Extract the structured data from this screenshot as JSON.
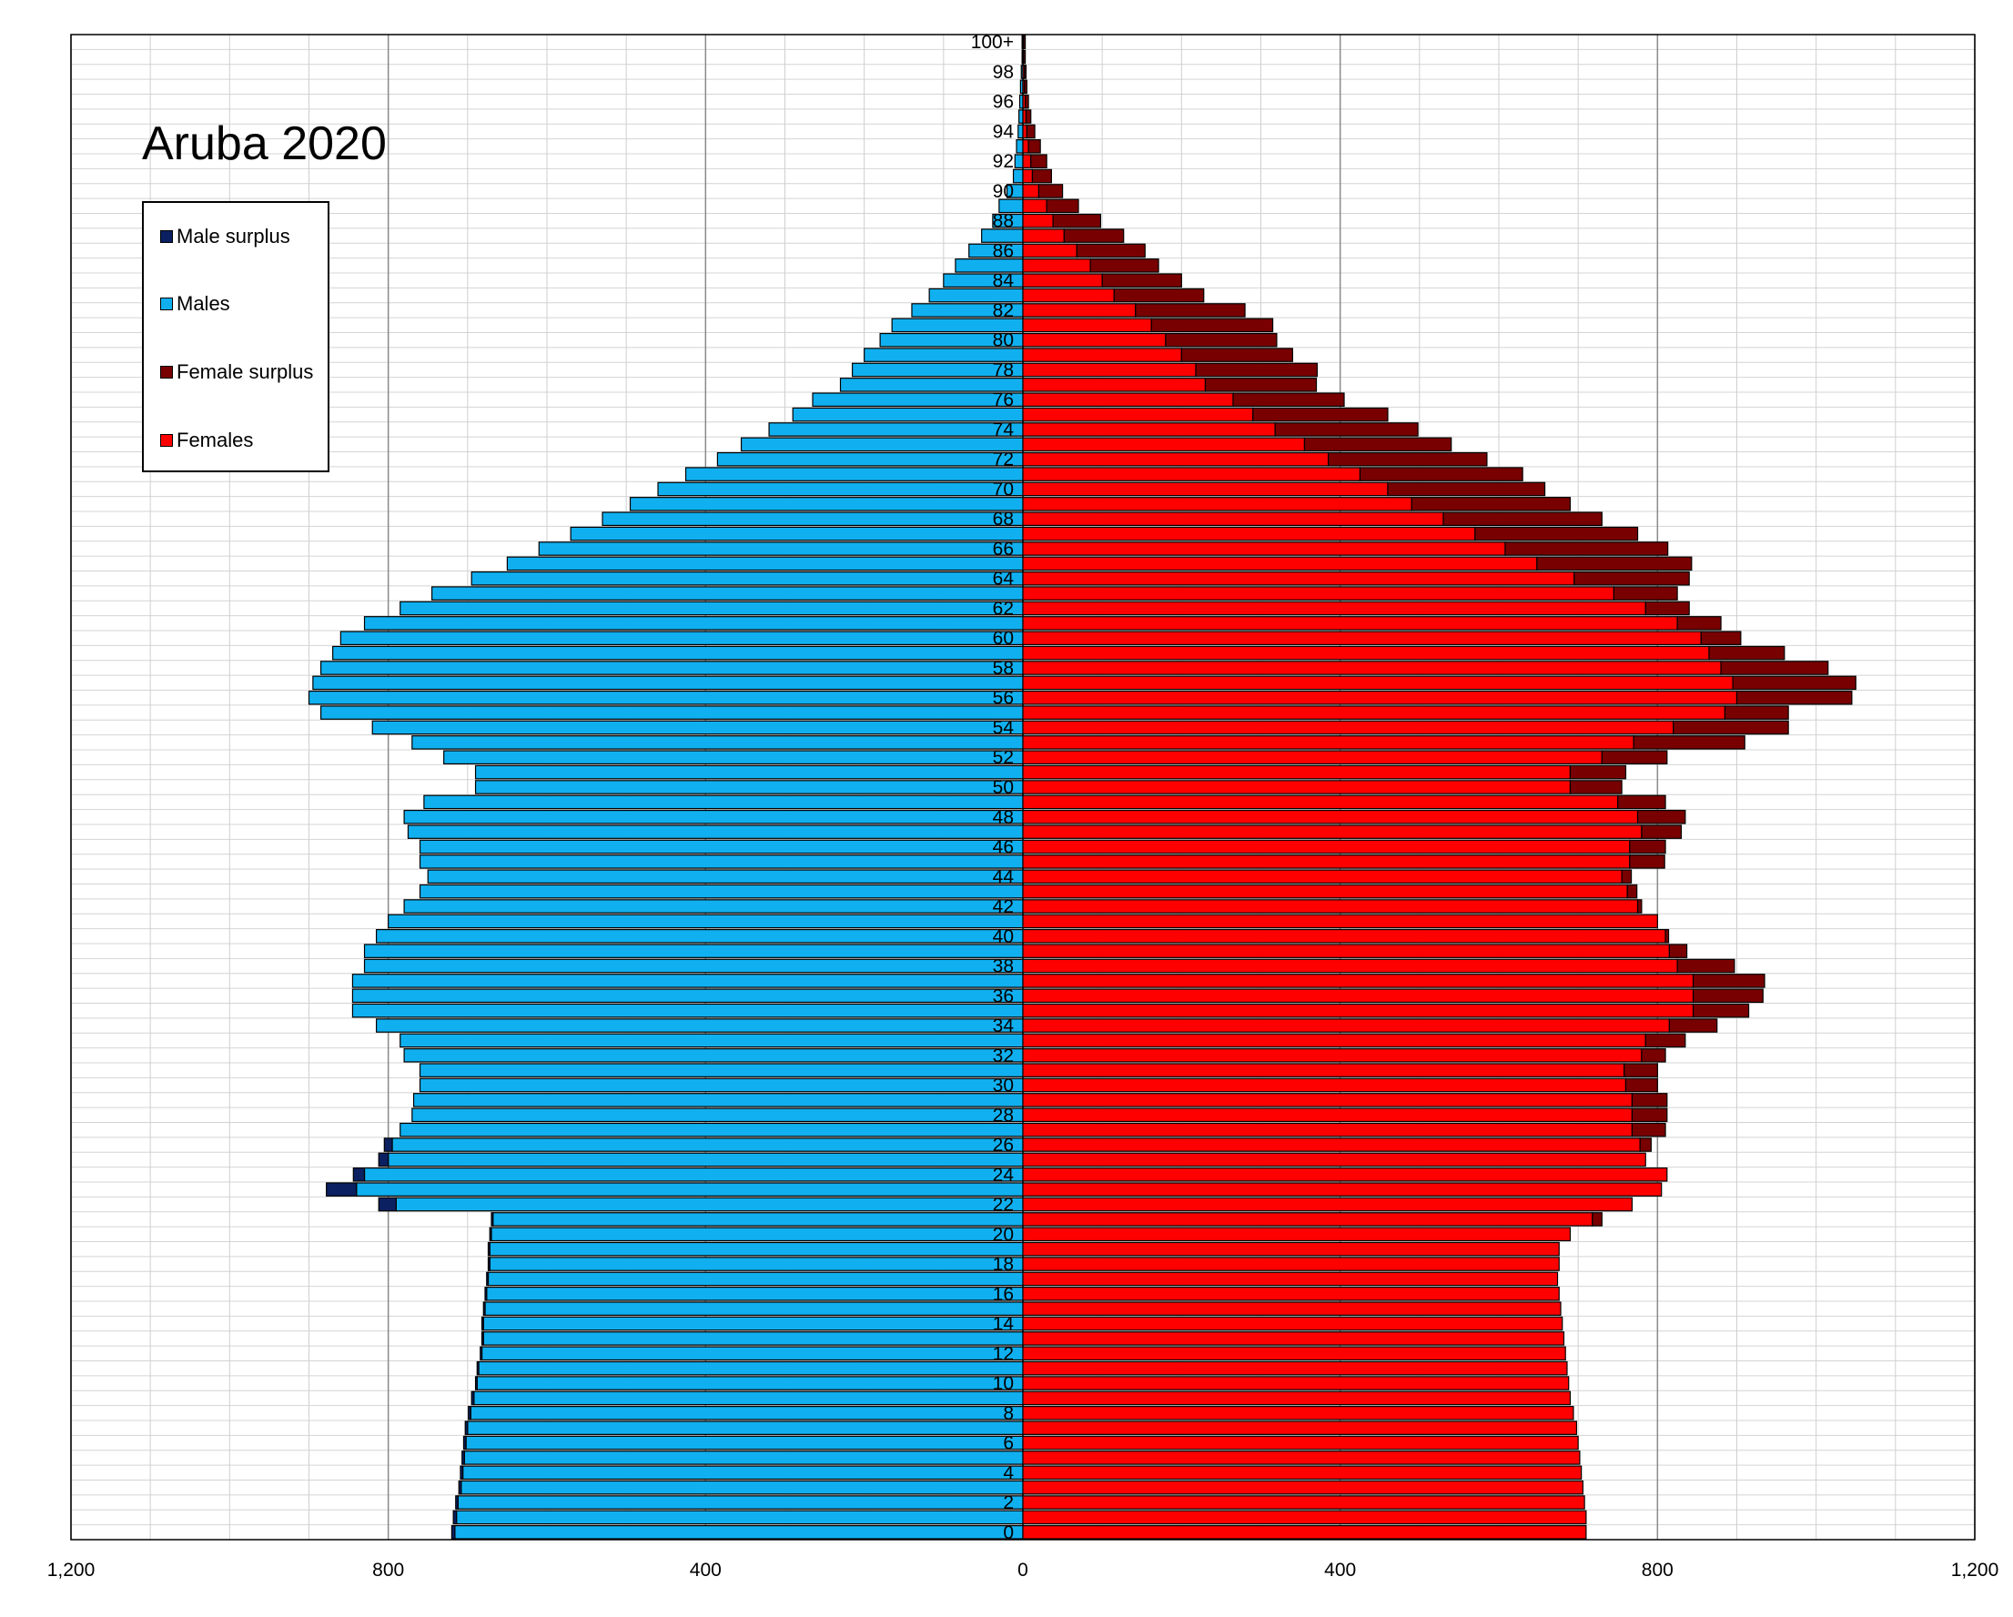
{
  "title": "Aruba 2020",
  "legend": [
    {
      "label": "Male surplus",
      "color": "#0a2060"
    },
    {
      "label": "Males",
      "color": "#10b0f0"
    },
    {
      "label": "Female surplus",
      "color": "#780000"
    },
    {
      "label": "Females",
      "color": "#ff0000"
    }
  ],
  "chart_data": {
    "type": "bar",
    "orientation": "horizontal-pyramid",
    "xlim": [
      -1200,
      1200
    ],
    "x_ticks": [
      -1200,
      -800,
      -400,
      0,
      400,
      800,
      1200
    ],
    "x_tick_labels": [
      "1,200",
      "800",
      "400",
      "0",
      "400",
      "800",
      "1,200"
    ],
    "y_tick_labels": [
      "0",
      "2",
      "4",
      "6",
      "8",
      "10",
      "12",
      "14",
      "16",
      "18",
      "20",
      "22",
      "24",
      "26",
      "28",
      "30",
      "32",
      "34",
      "36",
      "38",
      "40",
      "42",
      "44",
      "46",
      "48",
      "50",
      "52",
      "54",
      "56",
      "58",
      "60",
      "62",
      "64",
      "66",
      "68",
      "70",
      "72",
      "74",
      "76",
      "78",
      "80",
      "82",
      "84",
      "86",
      "88",
      "90",
      "92",
      "94",
      "96",
      "98",
      "100+"
    ],
    "grid": true,
    "legend_position": "top-left",
    "categories": [
      "0",
      "1",
      "2",
      "3",
      "4",
      "5",
      "6",
      "7",
      "8",
      "9",
      "10",
      "11",
      "12",
      "13",
      "14",
      "15",
      "16",
      "17",
      "18",
      "19",
      "20",
      "21",
      "22",
      "23",
      "24",
      "25",
      "26",
      "27",
      "28",
      "29",
      "30",
      "31",
      "32",
      "33",
      "34",
      "35",
      "36",
      "37",
      "38",
      "39",
      "40",
      "41",
      "42",
      "43",
      "44",
      "45",
      "46",
      "47",
      "48",
      "49",
      "50",
      "51",
      "52",
      "53",
      "54",
      "55",
      "56",
      "57",
      "58",
      "59",
      "60",
      "61",
      "62",
      "63",
      "64",
      "65",
      "66",
      "67",
      "68",
      "69",
      "70",
      "71",
      "72",
      "73",
      "74",
      "75",
      "76",
      "77",
      "78",
      "79",
      "80",
      "81",
      "82",
      "83",
      "84",
      "85",
      "86",
      "87",
      "88",
      "89",
      "90",
      "91",
      "92",
      "93",
      "94",
      "95",
      "96",
      "97",
      "98",
      "99",
      "100+"
    ],
    "series": [
      {
        "name": "Males",
        "values": [
          716,
          714,
          712,
          708,
          706,
          704,
          702,
          700,
          696,
          692,
          688,
          686,
          682,
          680,
          680,
          678,
          676,
          674,
          672,
          672,
          670,
          668,
          790,
          840,
          830,
          800,
          795,
          785,
          770,
          768,
          760,
          760,
          780,
          785,
          815,
          845,
          845,
          845,
          830,
          830,
          815,
          800,
          780,
          760,
          750,
          760,
          760,
          775,
          780,
          755,
          690,
          690,
          730,
          770,
          820,
          885,
          900,
          895,
          885,
          870,
          860,
          830,
          785,
          745,
          695,
          650,
          610,
          570,
          530,
          495,
          460,
          425,
          385,
          355,
          320,
          290,
          265,
          230,
          215,
          200,
          180,
          165,
          140,
          118,
          100,
          85,
          68,
          52,
          38,
          30,
          20,
          12,
          10,
          8,
          6,
          5,
          4,
          3,
          2,
          1,
          1
        ],
        "surplus": [
          4,
          4,
          3,
          3,
          3,
          3,
          3,
          3,
          3,
          3,
          2,
          2,
          2,
          2,
          2,
          2,
          2,
          2,
          2,
          2,
          2,
          2,
          22,
          38,
          14,
          12,
          10,
          0,
          0,
          0,
          0,
          0,
          0,
          0,
          0,
          0,
          0,
          0,
          0,
          0,
          0,
          0,
          0,
          0,
          0,
          0,
          0,
          0,
          0,
          0,
          0,
          0,
          0,
          0,
          0,
          0,
          0,
          0,
          0,
          0,
          0,
          0,
          0,
          0,
          0,
          0,
          0,
          0,
          0,
          0,
          0,
          0,
          0,
          0,
          0,
          0,
          0,
          0,
          0,
          0,
          0,
          0,
          0,
          0,
          0,
          0,
          0,
          0,
          0,
          0,
          0,
          0,
          0,
          0,
          0,
          0,
          0,
          0,
          0,
          0,
          0
        ]
      },
      {
        "name": "Females",
        "values": [
          710,
          710,
          708,
          706,
          704,
          702,
          700,
          698,
          694,
          690,
          688,
          686,
          684,
          682,
          680,
          678,
          676,
          674,
          676,
          676,
          690,
          718,
          768,
          805,
          812,
          785,
          778,
          768,
          768,
          768,
          760,
          758,
          780,
          785,
          815,
          845,
          845,
          845,
          825,
          815,
          810,
          800,
          775,
          762,
          755,
          765,
          765,
          780,
          775,
          750,
          690,
          690,
          730,
          770,
          820,
          885,
          900,
          895,
          880,
          865,
          855,
          825,
          785,
          745,
          695,
          648,
          608,
          570,
          530,
          490,
          460,
          425,
          385,
          355,
          318,
          290,
          265,
          230,
          218,
          200,
          180,
          162,
          142,
          115,
          100,
          85,
          68,
          52,
          38,
          30,
          20,
          12,
          10,
          7,
          5,
          4,
          3,
          2,
          2,
          1,
          1
        ],
        "surplus": [
          0,
          0,
          0,
          0,
          0,
          0,
          0,
          0,
          0,
          0,
          0,
          0,
          0,
          0,
          0,
          0,
          0,
          0,
          0,
          0,
          0,
          12,
          0,
          0,
          0,
          0,
          14,
          42,
          44,
          44,
          40,
          42,
          30,
          50,
          60,
          70,
          88,
          90,
          72,
          22,
          4,
          0,
          5,
          12,
          12,
          44,
          45,
          50,
          60,
          60,
          65,
          70,
          82,
          140,
          145,
          80,
          145,
          155,
          135,
          95,
          50,
          55,
          55,
          80,
          145,
          195,
          205,
          205,
          200,
          200,
          198,
          205,
          200,
          185,
          180,
          170,
          140,
          140,
          153,
          140,
          140,
          153,
          138,
          113,
          100,
          86,
          86,
          75,
          60,
          40,
          30,
          24,
          20,
          15,
          10,
          6,
          4,
          3,
          2,
          2,
          2
        ]
      }
    ]
  }
}
